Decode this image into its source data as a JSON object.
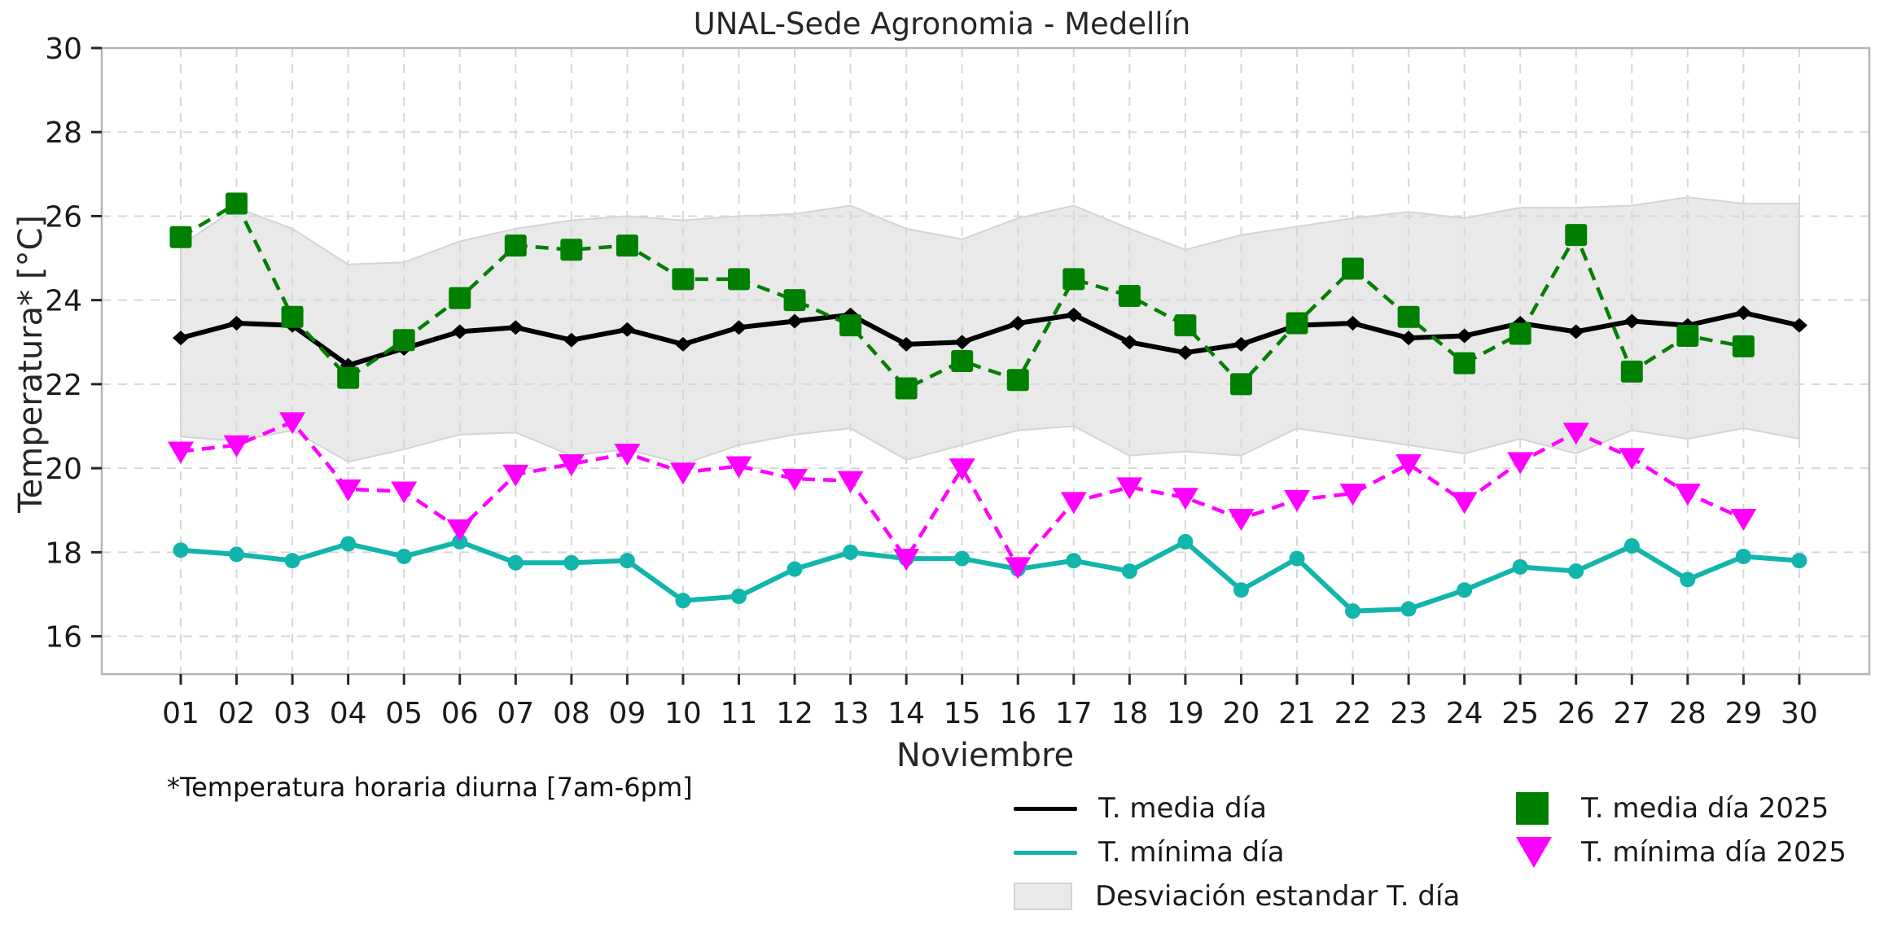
{
  "title": "UNAL-Sede Agronomia - Medellín",
  "footnote": "*Temperatura horaria diurna [7am-6pm]",
  "colors": {
    "mean_line": "#000000",
    "min_line": "#12b5ab",
    "mean_2025": "#008000",
    "min_2025": "#ff00ff",
    "band_fill": "#e9e9e9",
    "band_edge": "#d4d4d4",
    "grid": "#d7d7d7",
    "spine": "#b5b5b5",
    "tick": "#262626",
    "text": "#262626"
  },
  "chart_data": {
    "type": "line",
    "title": "UNAL-Sede Agronomia - Medellín",
    "xlabel": "Noviembre",
    "ylabel": "Temperatura* [°C]",
    "x_ticklabels": [
      "01",
      "02",
      "03",
      "04",
      "05",
      "06",
      "07",
      "08",
      "09",
      "10",
      "11",
      "12",
      "13",
      "14",
      "15",
      "16",
      "17",
      "18",
      "19",
      "20",
      "21",
      "22",
      "23",
      "24",
      "25",
      "26",
      "27",
      "28",
      "29",
      "30"
    ],
    "yticks": [
      16,
      18,
      20,
      22,
      24,
      26,
      28,
      30
    ],
    "ylim": [
      15.1,
      30.0
    ],
    "grid": true,
    "legend_position": "below",
    "series": [
      {
        "name": "T. media día",
        "color": "#000000",
        "style": "solid",
        "marker": "diamond",
        "values": [
          23.1,
          23.45,
          23.4,
          22.45,
          22.85,
          23.25,
          23.35,
          23.05,
          23.3,
          22.95,
          23.35,
          23.5,
          23.65,
          22.95,
          23.0,
          23.45,
          23.65,
          23.0,
          22.75,
          22.95,
          23.4,
          23.45,
          23.1,
          23.15,
          23.45,
          23.25,
          23.5,
          23.4,
          23.7,
          23.4
        ]
      },
      {
        "name": "T. mínima día",
        "color": "#12b5ab",
        "style": "solid",
        "marker": "circle",
        "values": [
          18.05,
          17.95,
          17.8,
          18.2,
          17.9,
          18.25,
          17.75,
          17.75,
          17.8,
          16.85,
          16.95,
          17.6,
          18.0,
          17.85,
          17.85,
          17.6,
          17.8,
          17.55,
          18.25,
          17.1,
          17.85,
          16.6,
          16.65,
          17.1,
          17.65,
          17.55,
          18.15,
          17.35,
          17.9,
          17.8
        ]
      },
      {
        "name": "T. media día 2025",
        "color": "#008000",
        "style": "dashed",
        "marker": "square",
        "values": [
          25.5,
          26.3,
          23.6,
          22.15,
          23.05,
          24.05,
          25.3,
          25.2,
          25.3,
          24.5,
          24.5,
          24.0,
          23.4,
          21.9,
          22.55,
          22.1,
          24.5,
          24.1,
          23.4,
          22.0,
          23.45,
          24.75,
          23.6,
          22.5,
          23.2,
          25.55,
          22.3,
          23.15,
          22.9
        ]
      },
      {
        "name": "T. mínima día 2025",
        "color": "#ff00ff",
        "style": "dashed",
        "marker": "triangle-down",
        "values": [
          20.4,
          20.55,
          21.1,
          19.5,
          19.45,
          18.55,
          19.85,
          20.1,
          20.35,
          19.9,
          20.05,
          19.75,
          19.7,
          17.85,
          20.0,
          17.65,
          19.2,
          19.55,
          19.3,
          18.8,
          19.25,
          19.4,
          20.1,
          19.2,
          20.15,
          20.85,
          20.25,
          19.4,
          18.8
        ]
      }
    ],
    "band": {
      "name": "Desviación estandar T. día",
      "fill": "#e9e9e9",
      "edge": "#d4d4d4",
      "upper": [
        25.3,
        26.2,
        25.7,
        24.85,
        24.9,
        25.4,
        25.7,
        25.9,
        26.0,
        25.9,
        26.0,
        26.05,
        26.25,
        25.7,
        25.45,
        25.95,
        26.25,
        25.7,
        25.2,
        25.55,
        25.75,
        25.95,
        26.1,
        25.95,
        26.2,
        26.2,
        26.25,
        26.45,
        26.3,
        26.3
      ],
      "lower": [
        20.75,
        20.65,
        20.9,
        20.15,
        20.45,
        20.8,
        20.85,
        20.3,
        20.45,
        20.1,
        20.55,
        20.8,
        20.95,
        20.2,
        20.55,
        20.9,
        21.0,
        20.3,
        20.4,
        20.3,
        20.95,
        20.75,
        20.55,
        20.35,
        20.7,
        20.35,
        20.9,
        20.7,
        20.95,
        20.7
      ]
    }
  }
}
